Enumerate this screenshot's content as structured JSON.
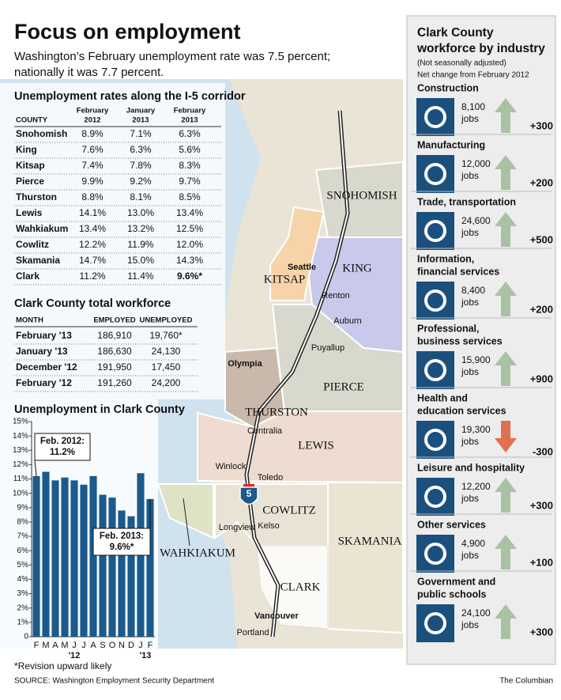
{
  "header": {
    "title": "Focus on employment",
    "subtitle": [
      "Washington’s February unemployment rate was 7.5 percent;",
      "nationally it was 7.7 percent."
    ]
  },
  "rates_table": {
    "title": "Unemployment rates along the I-5 corridor",
    "headers": [
      [
        "COUNTY"
      ],
      [
        "February",
        "2012"
      ],
      [
        "January",
        "2013"
      ],
      [
        "February",
        "2013"
      ]
    ],
    "rows": [
      [
        "Snohomish",
        "8.9%",
        "7.1%",
        "6.3%"
      ],
      [
        "King",
        "7.6%",
        "6.3%",
        "5.6%"
      ],
      [
        "Kitsap",
        "7.4%",
        "7.8%",
        "8.3%"
      ],
      [
        "Pierce",
        "9.9%",
        "9.2%",
        "9.7%"
      ],
      [
        "Thurston",
        "8.8%",
        "8.1%",
        "8.5%"
      ],
      [
        "Lewis",
        "14.1%",
        "13.0%",
        "13.4%"
      ],
      [
        "Wahkiakum",
        "13.4%",
        "13.2%",
        "12.5%"
      ],
      [
        "Cowlitz",
        "12.2%",
        "11.9%",
        "12.0%"
      ],
      [
        "Skamania",
        "14.7%",
        "15.0%",
        "14.3%"
      ],
      [
        "Clark",
        "11.2%",
        "11.4%",
        "9.6%*"
      ]
    ]
  },
  "workforce_table": {
    "title": "Clark County total workforce",
    "headers": [
      "MONTH",
      "EMPLOYED",
      "UNEMPLOYED"
    ],
    "rows": [
      [
        "February '13",
        "186,910",
        "19,760*"
      ],
      [
        "January '13",
        "186,630",
        "24,130"
      ],
      [
        "December '12",
        "191,950",
        "17,450"
      ],
      [
        "February '12",
        "191,260",
        "24,200"
      ]
    ]
  },
  "chart_data": {
    "type": "bar",
    "title": "Unemployment in Clark County",
    "categories": [
      "F",
      "M",
      "A",
      "M",
      "J",
      "J",
      "A",
      "S",
      "O",
      "N",
      "D",
      "J",
      "F"
    ],
    "year_labels": [
      "'12",
      "'13"
    ],
    "values": [
      11.2,
      11.5,
      10.9,
      11.1,
      10.9,
      10.6,
      11.2,
      9.9,
      9.7,
      8.8,
      8.4,
      11.4,
      9.6
    ],
    "color": "#1b5a8c",
    "ylim": [
      0,
      15
    ],
    "yticks": [
      0,
      {
        "value": 1,
        "label": "1%"
      },
      {
        "value": 2,
        "label": "2%"
      },
      {
        "value": 3,
        "label": "3%"
      },
      {
        "value": 4,
        "label": "4%"
      },
      {
        "value": 5,
        "label": "5%"
      },
      {
        "value": 6,
        "label": "6%"
      },
      {
        "value": 7,
        "label": "7%"
      },
      {
        "value": 8,
        "label": "8%"
      },
      {
        "value": 9,
        "label": "9%"
      },
      {
        "value": 10,
        "label": "10%"
      },
      {
        "value": 11,
        "label": "11%"
      },
      {
        "value": 12,
        "label": "12%"
      },
      {
        "value": 13,
        "label": "13%"
      },
      {
        "value": 14,
        "label": "14%"
      },
      {
        "value": 15,
        "label": "15%"
      }
    ],
    "annotations": [
      {
        "lines": [
          "Feb. 2012:",
          "11.2%"
        ]
      },
      {
        "lines": [
          "Feb. 2013:",
          "9.6%*"
        ]
      }
    ]
  },
  "map": {
    "counties": [
      "SNOHOMISH",
      "KING",
      "KITSAP",
      "PIERCE",
      "THURSTON",
      "LEWIS",
      "COWLITZ",
      "WAHKIAKUM",
      "SKAMANIA",
      "CLARK"
    ],
    "cities": [
      "Seattle",
      "Renton",
      "Auburn",
      "Puyallup",
      "Olympia",
      "Centralia",
      "Winlock",
      "Toledo",
      "Longview",
      "Kelso",
      "Vancouver",
      "Portland"
    ],
    "interstate": "5"
  },
  "industry_panel": {
    "title": [
      "Clark County",
      "workforce by industry"
    ],
    "notes": [
      "(Not seasonally adjusted)",
      "Net change from February 2012"
    ],
    "jobs_unit": "jobs",
    "items": [
      {
        "name": [
          "Construction"
        ],
        "jobs": "8,100",
        "change": "+300"
      },
      {
        "name": [
          "Manufacturing"
        ],
        "jobs": "12,000",
        "change": "+200"
      },
      {
        "name": [
          "Trade, transportation"
        ],
        "jobs": "24,600",
        "change": "+500"
      },
      {
        "name": [
          "Information,",
          "financial services"
        ],
        "jobs": "8,400",
        "change": "+200"
      },
      {
        "name": [
          "Professional,",
          "business services"
        ],
        "jobs": "15,900",
        "change": "+900"
      },
      {
        "name": [
          "Health and",
          "education services"
        ],
        "jobs": "19,300",
        "change": "-300"
      },
      {
        "name": [
          "Leisure and hospitality"
        ],
        "jobs": "12,200",
        "change": "+300"
      },
      {
        "name": [
          "Other services"
        ],
        "jobs": "4,900",
        "change": "+100"
      },
      {
        "name": [
          "Government and",
          "public schools"
        ],
        "jobs": "24,100",
        "change": "+300"
      }
    ]
  },
  "footer": {
    "footnote": "*Revision upward likely",
    "source": "SOURCE: Washington Employment Security Department",
    "credit": "The Columbian"
  }
}
